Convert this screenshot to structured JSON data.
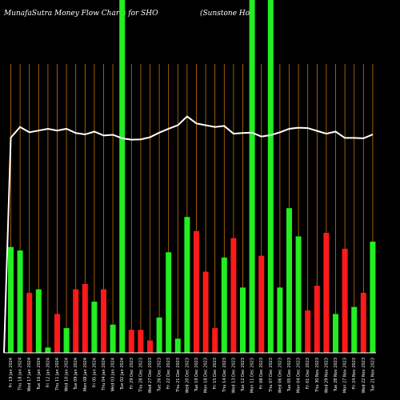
{
  "title": {
    "left": "MunafaSutra  Money Flow  Charts for SHO",
    "right": "(Sunstone   Hot"
  },
  "chart_data": {
    "type": "bar",
    "ylim": [
      0,
      100
    ],
    "categories": [
      "Fri 19 Jan 2024",
      "Thu 18 Jan 2024",
      "Wed 17 Jan 2024",
      "Tue 16 Jan 2024",
      "Fri 12 Jan 2024",
      "Thu 11 Jan 2024",
      "Wed 10 Jan 2024",
      "Tue 09 Jan 2024",
      "Mon 08 Jan 2024",
      "Fri 05 Jan 2024",
      "Thu 04 Jan 2024",
      "Wed 03 Jan 2024",
      "Tue 02 Jan 2024",
      "Fri 29 Dec 2023",
      "Thu 28 Dec 2023",
      "Wed 27 Dec 2023",
      "Tue 26 Dec 2023",
      "Fri 22 Dec 2023",
      "Thu 21 Dec 2023",
      "Wed 20 Dec 2023",
      "Tue 19 Dec 2023",
      "Mon 18 Dec 2023",
      "Fri 15 Dec 2023",
      "Thu 14 Dec 2023",
      "Wed 13 Dec 2023",
      "Tue 12 Dec 2023",
      "Mon 11 Dec 2023",
      "Fri 08 Dec 2023",
      "Thu 07 Dec 2023",
      "Wed 06 Dec 2023",
      "Tue 05 Dec 2023",
      "Mon 04 Dec 2023",
      "Fri 01 Dec 2023",
      "Thu 30 Nov 2023",
      "Wed 29 Nov 2023",
      "Tue 28 Nov 2023",
      "Mon 27 Nov 2023",
      "Fri 24 Nov 2023",
      "Wed 22 Nov 2023",
      "Tue 21 Nov 2023"
    ],
    "bars": [
      {
        "value": 30,
        "color": "green"
      },
      {
        "value": 29,
        "color": "green"
      },
      {
        "value": 17,
        "color": "red"
      },
      {
        "value": 18,
        "color": "green"
      },
      {
        "value": 1.5,
        "color": "green"
      },
      {
        "value": 11,
        "color": "red"
      },
      {
        "value": 7,
        "color": "green"
      },
      {
        "value": 18,
        "color": "red"
      },
      {
        "value": 19.5,
        "color": "red"
      },
      {
        "value": 14.5,
        "color": "green"
      },
      {
        "value": 18,
        "color": "red"
      },
      {
        "value": 8,
        "color": "green"
      },
      {
        "value": 100,
        "color": "green"
      },
      {
        "value": 6.5,
        "color": "red"
      },
      {
        "value": 6.5,
        "color": "red"
      },
      {
        "value": 3.5,
        "color": "red"
      },
      {
        "value": 10,
        "color": "green"
      },
      {
        "value": 28.5,
        "color": "green"
      },
      {
        "value": 4,
        "color": "green"
      },
      {
        "value": 38.5,
        "color": "green"
      },
      {
        "value": 34.5,
        "color": "red"
      },
      {
        "value": 23,
        "color": "red"
      },
      {
        "value": 7,
        "color": "red"
      },
      {
        "value": 27,
        "color": "green"
      },
      {
        "value": 32.5,
        "color": "red"
      },
      {
        "value": 18.5,
        "color": "green"
      },
      {
        "value": 100,
        "color": "green"
      },
      {
        "value": 27.5,
        "color": "red"
      },
      {
        "value": 100,
        "color": "green"
      },
      {
        "value": 18.5,
        "color": "green"
      },
      {
        "value": 41,
        "color": "green"
      },
      {
        "value": 33,
        "color": "green"
      },
      {
        "value": 12,
        "color": "red"
      },
      {
        "value": 19,
        "color": "red"
      },
      {
        "value": 34,
        "color": "red"
      },
      {
        "value": 11,
        "color": "green"
      },
      {
        "value": 29.5,
        "color": "red"
      },
      {
        "value": 13,
        "color": "green"
      },
      {
        "value": 17,
        "color": "red"
      },
      {
        "value": 31.5,
        "color": "green"
      }
    ],
    "line": [
      61,
      64,
      62.5,
      63,
      63.5,
      63,
      63.5,
      62.3,
      61.9,
      62.7,
      61.6,
      61.8,
      60.8,
      60.4,
      60.5,
      61.1,
      62.4,
      63.5,
      64.5,
      67,
      65,
      64.5,
      64,
      64.3,
      62.1,
      62.3,
      62.4,
      61.3,
      61.7,
      62.5,
      63.5,
      63.8,
      63.7,
      62.9,
      62.1,
      62.7,
      60.9,
      60.9,
      60.8,
      61.9
    ],
    "colors": {
      "green": "#22ee22",
      "red": "#ff1a1a",
      "grid": "#c8720e",
      "line": "#ffffff",
      "background": "#000000"
    }
  }
}
